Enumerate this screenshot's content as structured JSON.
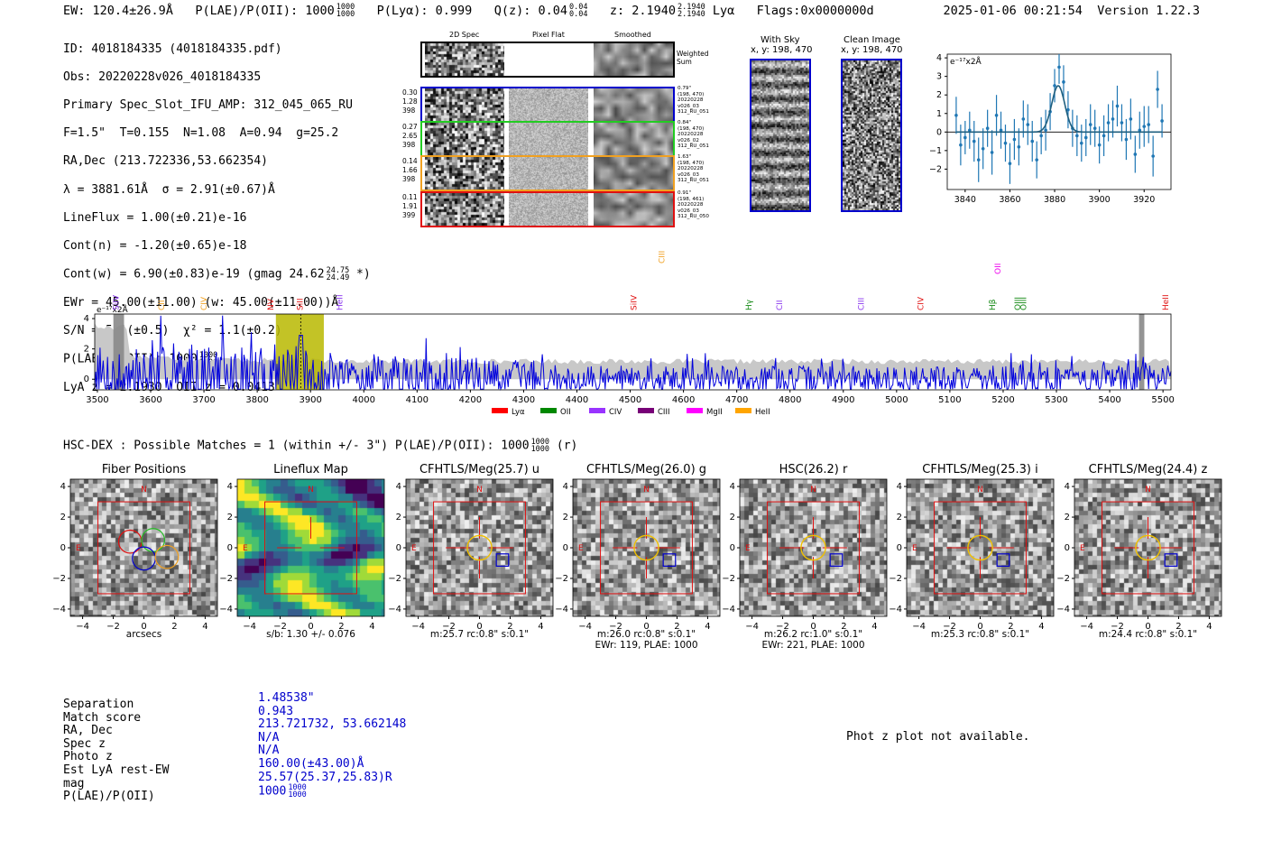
{
  "header": {
    "ew": "EW: 120.4±26.9Å",
    "plae_label": "P(LAE)/P(OII): 1000",
    "plae_hi": "1000",
    "plae_lo": "1000",
    "plya": "P(Lyα): 0.999",
    "qz_label": "Q(z): 0.04",
    "qz_hi": "0.04",
    "qz_lo": "0.04",
    "z_label": "z: 2.1940",
    "z_hi": "2.1940",
    "z_lo": "2.1940",
    "line": "Lyα",
    "flags": "Flags:0x0000000d",
    "timestamp": "2025-01-06 00:21:54",
    "version": "Version 1.22.3"
  },
  "info": {
    "id": "ID: 4018184335 (4018184335.pdf)",
    "obs": "Obs: 20220228v026_4018184335",
    "slot": "Primary Spec_Slot_IFU_AMP: 312_045_065_RU",
    "params": "F=1.5\"  T=0.155  N=1.08  A=0.94  g=25.2",
    "radec": "RA,Dec (213.722336,53.662354)",
    "lambda": "λ = 3881.61Å  σ = 2.91(±0.67)Å",
    "lineflux": "LineFlux = 1.00(±0.21)e-16",
    "contn": "Cont(n) = -1.20(±0.65)e-18",
    "contw": "Cont(w) = 6.90(±0.83)e-19 (gmag 24.62",
    "contw_hi": "24.75",
    "contw_lo": "24.49",
    "contw_tail": "*)",
    "ewr": "EWr = 45.00(±11.00) (w: 45.00(±11.00))Å",
    "sn": "S/N = 5.1(±0.5)  χ² = 1.1(±0.2)",
    "plae": "P(LAE)/P(OII): 1000",
    "plae_hi": "1000",
    "plae_lo": "1000",
    "lyaz": "LyA z = 2.1930  OII z = 0.0413"
  },
  "cutouts": {
    "col_labels": [
      "2D Spec",
      "Pixel Flat",
      "Smoothed"
    ],
    "weighted": "Weighted\nSum",
    "rows": [
      {
        "left": "0.30\n1.28\n398",
        "right": "0.79\"\n(198, 470)\n20220228\nv026_03\n312_RU_051",
        "color": "#0000cc"
      },
      {
        "left": "0.27\n2.65\n398",
        "right": "0.84\"\n(198, 470)\n20220228\nv026_02\n312_RU_051",
        "color": "#22cc22"
      },
      {
        "left": "0.14\n1.66\n398",
        "right": "1.63\"\n(198, 470)\n20220228\nv026_03\n312_RU_051",
        "color": "#f0a020"
      },
      {
        "left": "0.11\n1.91\n399",
        "right": "0.91\"\n(198, 461)\n20220228\nv026_03\n312_RU_050",
        "color": "#e01010"
      }
    ],
    "with_sky": "With Sky",
    "with_sky_xy": "x, y: 198, 470",
    "clean": "Clean Image",
    "clean_xy": "x, y: 198, 470"
  },
  "zoom_plot": {
    "unit": "e⁻¹⁷x2Å",
    "xticks": [
      "3840",
      "3860",
      "3880",
      "3900",
      "3920"
    ],
    "yticks": [
      "4",
      "3",
      "2",
      "1",
      "0",
      "−1",
      "−2"
    ]
  },
  "full_spectrum": {
    "unit": "e⁻¹⁷x2Å",
    "xticks": [
      "3500",
      "3600",
      "3700",
      "3800",
      "3900",
      "4000",
      "4100",
      "4200",
      "4300",
      "4400",
      "4500",
      "4600",
      "4700",
      "4800",
      "4900",
      "5000",
      "5100",
      "5200",
      "5300",
      "5400",
      "5500"
    ],
    "yticks": [
      "4",
      "2",
      "0"
    ],
    "lines": [
      {
        "name": "SiIV",
        "color": "#8833ee"
      },
      {
        "name": "CIV",
        "color": "#f0a020"
      },
      {
        "name": "NV",
        "color": "#e01010"
      },
      {
        "name": "SiII",
        "color": "#e01010"
      },
      {
        "name": "HeII",
        "color": "#8833ee"
      },
      {
        "name": "SiIV",
        "color": "#e01010"
      },
      {
        "name": "CIII",
        "color": "#f0a020"
      },
      {
        "name": "Hγ",
        "color": "#118811"
      },
      {
        "name": "CII",
        "color": "#8833ee"
      },
      {
        "name": "CIII",
        "color": "#8833ee"
      },
      {
        "name": "CIV",
        "color": "#e01010"
      },
      {
        "name": "Hβ",
        "color": "#118811"
      },
      {
        "name": "OII",
        "color": "#ee00ee"
      },
      {
        "name": "OIII",
        "color": "#118811"
      },
      {
        "name": "OIII",
        "color": "#118811"
      },
      {
        "name": "HeII",
        "color": "#e01010"
      },
      {
        "name": "CII",
        "color": "#f0a020"
      }
    ],
    "legend": [
      {
        "name": "Lyα",
        "color": "#ff0000"
      },
      {
        "name": "OII",
        "color": "#008800"
      },
      {
        "name": "CIV",
        "color": "#9933ff"
      },
      {
        "name": "CIII",
        "color": "#770077"
      },
      {
        "name": "MgII",
        "color": "#ff00ff"
      },
      {
        "name": "HeII",
        "color": "#ffa500"
      }
    ]
  },
  "hsc": {
    "title": "HSC-DEX : Possible Matches = 1 (within +/- 3\")  P(LAE)/P(OII): 1000",
    "title_hi": "1000",
    "title_lo": "1000",
    "title_tail": "(r)"
  },
  "images": [
    {
      "title": "Fiber Positions",
      "cap1": "arcsecs",
      "cap2": ""
    },
    {
      "title": "Lineflux Map",
      "cap1": "s/b: 1.30 +/- 0.076",
      "cap2": ""
    },
    {
      "title": "CFHTLS/Meg(25.7) u",
      "cap1": "m:25.7 rc:0.8\"  s:0.1\"",
      "cap2": ""
    },
    {
      "title": "CFHTLS/Meg(26.0) g",
      "cap1": "m:26.0 rc:0.8\"  s:0.1\"",
      "cap2": "EWr: 119, PLAE: 1000"
    },
    {
      "title": "HSC(26.2) r",
      "cap1": "m:26.2 rc:1.0\"  s:0.1\"",
      "cap2": "EWr: 221, PLAE: 1000"
    },
    {
      "title": "CFHTLS/Meg(25.3) i",
      "cap1": "m:25.3 rc:0.8\"  s:0.1\"",
      "cap2": ""
    },
    {
      "title": "CFHTLS/Meg(24.4) z",
      "cap1": "m:24.4 rc:0.8\"  s:0.1\"",
      "cap2": ""
    }
  ],
  "img_axis": {
    "ticks": [
      "4",
      "2",
      "0",
      "−2",
      "−4"
    ],
    "xticks": [
      "−4",
      "−2",
      "0",
      "2",
      "4"
    ],
    "n": "N",
    "e": "E"
  },
  "match": {
    "labels": [
      "Separation",
      "Match score",
      "RA, Dec",
      "Spec z",
      "Photo z",
      "Est LyA rest-EW",
      "mag",
      "P(LAE)/P(OII)"
    ],
    "values": [
      "1.48538\"",
      "0.943",
      "213.721732, 53.662148",
      "N/A",
      "N/A",
      "160.00(±43.00)Å",
      "25.57(25.37,25.83)R",
      "1000"
    ],
    "plae_hi": "1000",
    "plae_lo": "1000"
  },
  "photz": "Phot z plot not available.",
  "colors": {
    "spectrum": "#0000dd",
    "fit": "#1f5f7f",
    "points": "#1f77b4",
    "highlight": "#b8b800"
  },
  "chart_data": [
    {
      "type": "scatter",
      "title": "",
      "xlabel": "",
      "ylabel": "e⁻¹⁷x2Å",
      "xlim": [
        3832,
        3932
      ],
      "ylim": [
        -3.1,
        4.2
      ],
      "x": [
        3836,
        3838,
        3840,
        3842,
        3844,
        3846,
        3848,
        3850,
        3852,
        3854,
        3856,
        3858,
        3860,
        3862,
        3864,
        3866,
        3868,
        3870,
        3872,
        3874,
        3876,
        3878,
        3880,
        3882,
        3884,
        3886,
        3888,
        3890,
        3892,
        3894,
        3896,
        3898,
        3900,
        3902,
        3904,
        3906,
        3908,
        3910,
        3912,
        3914,
        3916,
        3918,
        3920,
        3922,
        3924,
        3926,
        3928
      ],
      "y": [
        0.9,
        -0.7,
        -0.3,
        0.1,
        -0.5,
        -1.5,
        -0.9,
        0.2,
        -1.1,
        0.9,
        0.1,
        -0.6,
        -1.7,
        -0.4,
        -0.8,
        0.7,
        0.4,
        -0.5,
        -1.5,
        -0.2,
        0.1,
        1.1,
        2.5,
        3.5,
        2.7,
        1.2,
        0.2,
        -0.2,
        -0.6,
        -0.3,
        0.4,
        0.2,
        -0.7,
        -0.2,
        0.5,
        0.7,
        1.4,
        0.5,
        -0.4,
        0.7,
        -1.2,
        0.1,
        0.3,
        0.4,
        -1.3,
        2.3,
        0.6
      ],
      "err": [
        1.0,
        1.1,
        0.9,
        1.0,
        1.1,
        1.2,
        1.1,
        1.0,
        1.2,
        1.1,
        1.0,
        1.0,
        1.1,
        1.1,
        1.0,
        1.0,
        1.1,
        1.1,
        1.0,
        1.0,
        1.1,
        1.0,
        0.9,
        0.9,
        0.9,
        1.0,
        1.0,
        1.1,
        1.0,
        1.0,
        1.1,
        1.0,
        1.0,
        1.1,
        1.0,
        1.0,
        1.1,
        1.0,
        1.1,
        1.1,
        1.0,
        1.0,
        1.1,
        1.0,
        1.1,
        1.0,
        0.9
      ],
      "fit": {
        "amplitude": 2.5,
        "center": 3881.6,
        "sigma": 2.91,
        "baseline": 0.0
      }
    },
    {
      "type": "line",
      "title": "",
      "ylabel": "e⁻¹⁷x2Å",
      "xlim": [
        3495,
        5515
      ],
      "ylim": [
        -0.7,
        4.3
      ],
      "series": [
        {
          "name": "spectrum",
          "seed": 7,
          "step": 2
        },
        {
          "name": "noise",
          "level": 1.0
        }
      ],
      "line_wavelengths": [
        3535,
        3700,
        3825,
        3880,
        3955,
        4507,
        4559,
        4723,
        4780,
        4933,
        5045,
        5180,
        5190,
        5227,
        5238,
        5505,
        3620
      ],
      "highlight": [
        3835,
        3925
      ],
      "detected": 3881.6,
      "masked": [
        3530,
        3550,
        5455,
        5465
      ]
    }
  ]
}
